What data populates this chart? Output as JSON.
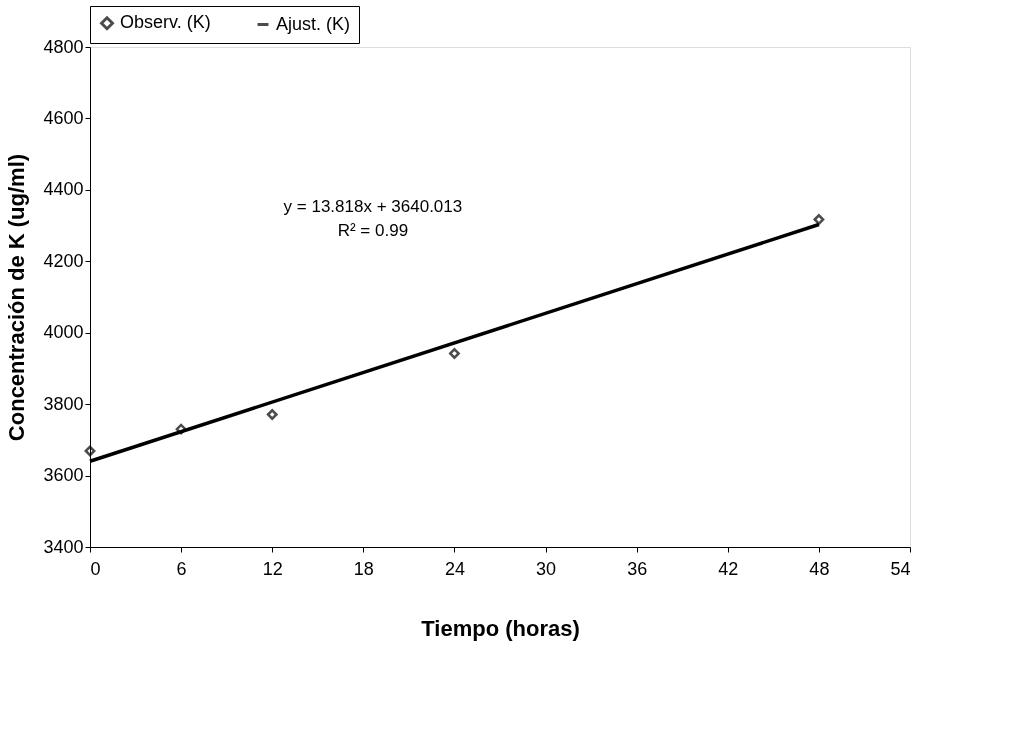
{
  "chart_data": {
    "type": "scatter",
    "xlabel": "Tiempo (horas)",
    "ylabel": "Concentración de K (ug/ml)",
    "xlim": [
      0,
      54
    ],
    "xticks": [
      0,
      6,
      12,
      18,
      24,
      30,
      36,
      42,
      48,
      54
    ],
    "ylim": [
      3400,
      4800
    ],
    "yticks": [
      3400,
      3600,
      3800,
      4000,
      4200,
      4400,
      4600,
      4800
    ],
    "grid": false,
    "legend": "top",
    "series": [
      {
        "name": "Observ. (K)",
        "type": "scatter",
        "marker": "diamond",
        "color": "#000000",
        "x": [
          0,
          6,
          12,
          24,
          48
        ],
        "values": [
          3669,
          3730,
          3771,
          3942,
          4317
        ]
      },
      {
        "name": "Ajust. (K)",
        "type": "line",
        "marker": "none",
        "line_style": "solid",
        "color": "#000000",
        "x": [
          0,
          48
        ],
        "values": [
          3640,
          4303
        ]
      }
    ],
    "annotations": [
      "y = 13.818x + 3640.013",
      "R² = 0.99"
    ]
  }
}
